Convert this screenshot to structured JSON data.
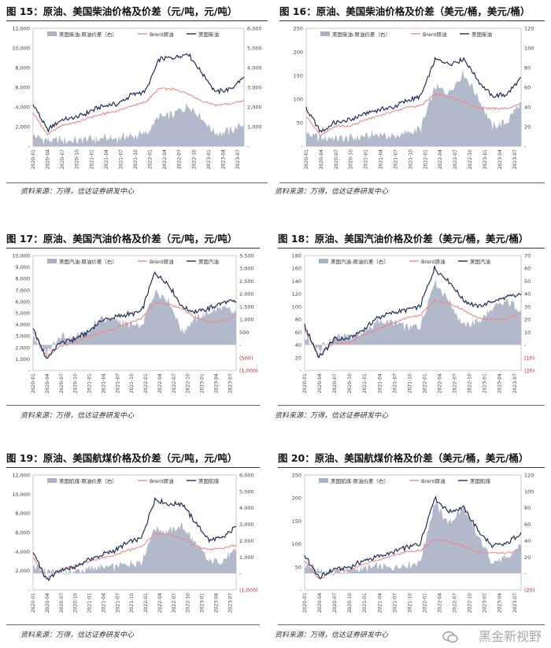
{
  "watermark": "黑金新视野",
  "colors": {
    "spread": "#a9b1c4",
    "brent": "#ef8a87",
    "product": "#1f2d5a",
    "neg": "#d81e1e"
  },
  "x_ticks": [
    "2020-01",
    "2020-04",
    "2020-07",
    "2020-10",
    "2021-01",
    "2021-04",
    "2021-07",
    "2021-10",
    "2022-01",
    "2022-04",
    "2022-07",
    "2022-10",
    "2023-01",
    "2023-04",
    "2023-07"
  ],
  "charts": [
    {
      "title": "图 15：原油、美国柴油价格及价差（元/吨，元/吨）",
      "source": "资料来源：万得，信达证券研发中心",
      "legend": {
        "spread": "美国柴油-原油价差（右）",
        "brent": "Brent原油",
        "product": "美国柴油"
      },
      "left_axis": {
        "min": 0,
        "max": 12000,
        "ticks": [
          0,
          2000,
          4000,
          6000,
          8000,
          10000,
          12000
        ],
        "labels": [
          "-",
          "2,000",
          "4,000",
          "6,000",
          "8,000",
          "10,000",
          "12,000"
        ]
      },
      "right_axis": {
        "min": 0,
        "max": 6000,
        "ticks": [
          0,
          1000,
          2000,
          3000,
          4000,
          5000,
          6000
        ],
        "labels": [
          "-",
          "1,000",
          "2,000",
          "3,000",
          "4,000",
          "5,000",
          "6,000"
        ],
        "neg_labels": []
      },
      "chart_data": {
        "type": "line",
        "dates": [
          "2020-01",
          "2020-04",
          "2020-07",
          "2020-10",
          "2021-01",
          "2021-04",
          "2021-07",
          "2021-10",
          "2022-01",
          "2022-04",
          "2022-07",
          "2022-10",
          "2023-01",
          "2023-04",
          "2023-07",
          "2023-09"
        ],
        "series": [
          {
            "name": "美国柴油",
            "axis": "left",
            "values": [
              4300,
              1700,
              2700,
              2900,
              3500,
              4100,
              4300,
              5200,
              5600,
              8900,
              9000,
              9500,
              7500,
              5500,
              5800,
              7000
            ]
          },
          {
            "name": "Brent原油",
            "axis": "left",
            "values": [
              3400,
              1200,
              2100,
              2400,
              2900,
              3300,
              3600,
              4100,
              4500,
              5900,
              5800,
              5400,
              4600,
              4200,
              4300,
              4700
            ]
          },
          {
            "name": "美国柴油-原油价差（右）",
            "axis": "right",
            "values": [
              500,
              300,
              300,
              300,
              350,
              400,
              400,
              550,
              600,
              1500,
              1600,
              2100,
              1450,
              650,
              750,
              1150
            ]
          }
        ]
      }
    },
    {
      "title": "图 16：原油、美国柴油价格及价差（美元/桶，美元/桶）",
      "source": "资料来源：万得，信达证券研发中心",
      "legend": {
        "spread": "美国柴油-原油价差（右）",
        "brent": "Brent原油",
        "product": "美国柴油"
      },
      "left_axis": {
        "min": 0,
        "max": 250,
        "ticks": [
          0,
          50,
          100,
          150,
          200,
          250
        ],
        "labels": [
          "-",
          "50",
          "100",
          "150",
          "200",
          "250"
        ]
      },
      "right_axis": {
        "min": 0,
        "max": 120,
        "ticks": [
          0,
          20,
          40,
          60,
          80,
          100,
          120
        ],
        "labels": [
          "-",
          "20",
          "40",
          "60",
          "80",
          "100",
          "120"
        ],
        "neg_labels": []
      },
      "chart_data": {
        "type": "line",
        "dates": [
          "2020-01",
          "2020-04",
          "2020-07",
          "2020-10",
          "2021-01",
          "2021-04",
          "2021-07",
          "2021-10",
          "2022-01",
          "2022-04",
          "2022-07",
          "2022-10",
          "2023-01",
          "2023-04",
          "2023-07",
          "2023-09"
        ],
        "series": [
          {
            "name": "美国柴油",
            "axis": "left",
            "values": [
              80,
              30,
              50,
              55,
              68,
              78,
              82,
              97,
              105,
              185,
              175,
              185,
              140,
              105,
              110,
              145
            ]
          },
          {
            "name": "Brent原油",
            "axis": "left",
            "values": [
              64,
              22,
              43,
              42,
              55,
              64,
              73,
              82,
              86,
              110,
              105,
              95,
              82,
              80,
              80,
              90
            ]
          },
          {
            "name": "美国柴油-原油价差（右）",
            "axis": "right",
            "values": [
              14,
              8,
              8,
              8,
              10,
              12,
              10,
              13,
              18,
              60,
              55,
              75,
              50,
              20,
              25,
              45
            ]
          }
        ]
      }
    },
    {
      "title": "图 17：原油、美国汽油价格及价差（元/吨，元/吨）",
      "source": "资料来源：万得，信达证券研发中心",
      "legend": {
        "spread": "美国汽油-原油价差（右）",
        "brent": "Brent原油",
        "product": "美国汽油"
      },
      "left_axis": {
        "min": 0,
        "max": 10000,
        "ticks": [
          0,
          1000,
          2000,
          3000,
          4000,
          5000,
          6000,
          7000,
          8000,
          9000,
          10000
        ],
        "labels": [
          "-",
          "1,000",
          "2,000",
          "3,000",
          "4,000",
          "5,000",
          "6,000",
          "7,000",
          "8,000",
          "9,000",
          "10,000"
        ]
      },
      "right_axis": {
        "min": -1000,
        "max": 3500,
        "ticks": [
          -1000,
          -500,
          0,
          500,
          1000,
          1500,
          2000,
          2500,
          3000,
          3500
        ],
        "labels": [
          "(1,000)",
          "(500)",
          "-",
          "500",
          "1,000",
          "1,500",
          "2,000",
          "2,500",
          "3,000",
          "3,500"
        ],
        "neg_labels": [
          "(1,000)",
          "(500)"
        ]
      },
      "chart_data": {
        "type": "line",
        "dates": [
          "2020-01",
          "2020-04",
          "2020-07",
          "2020-10",
          "2021-01",
          "2021-04",
          "2021-07",
          "2021-10",
          "2022-01",
          "2022-04",
          "2022-07",
          "2022-10",
          "2023-01",
          "2023-04",
          "2023-07",
          "2023-09"
        ],
        "series": [
          {
            "name": "美国汽油",
            "axis": "left",
            "values": [
              3600,
              1000,
              2400,
              2700,
              3300,
              4300,
              4600,
              4900,
              5100,
              8500,
              7500,
              5500,
              5100,
              5400,
              5900,
              6000
            ]
          },
          {
            "name": "Brent原油",
            "axis": "left",
            "values": [
              3400,
              1200,
              2100,
              2400,
              2900,
              3300,
              3600,
              4100,
              4500,
              5900,
              5800,
              5400,
              4600,
              4200,
              4300,
              4700
            ]
          },
          {
            "name": "美国汽油-原油价差（右）",
            "axis": "right",
            "values": [
              300,
              -300,
              300,
              300,
              500,
              1000,
              1000,
              800,
              700,
              2100,
              1800,
              500,
              1000,
              1300,
              1500,
              1200
            ]
          }
        ]
      }
    },
    {
      "title": "图 18：原油、美国汽油价格及价差（美元/桶，美元/桶）",
      "source": "资料来源：万得，信达证券研发中心",
      "legend": {
        "spread": "美国汽油-原油价差（右）",
        "brent": "Brent原油",
        "product": "美国汽油"
      },
      "left_axis": {
        "min": 0,
        "max": 180,
        "ticks": [
          0,
          20,
          40,
          60,
          80,
          100,
          120,
          140,
          160,
          180
        ],
        "labels": [
          "-",
          "20",
          "40",
          "60",
          "80",
          "100",
          "120",
          "140",
          "160",
          "180"
        ]
      },
      "right_axis": {
        "min": -20,
        "max": 70,
        "ticks": [
          -20,
          -10,
          0,
          10,
          20,
          30,
          40,
          50,
          60,
          70
        ],
        "labels": [
          "(20)",
          "(10)",
          "-",
          "10",
          "20",
          "30",
          "40",
          "50",
          "60",
          "70"
        ],
        "neg_labels": [
          "(20)",
          "(10)"
        ]
      },
      "chart_data": {
        "type": "line",
        "dates": [
          "2020-01",
          "2020-04",
          "2020-07",
          "2020-10",
          "2021-01",
          "2021-04",
          "2021-07",
          "2021-10",
          "2022-01",
          "2022-04",
          "2022-07",
          "2022-10",
          "2023-01",
          "2023-04",
          "2023-07",
          "2023-09"
        ],
        "series": [
          {
            "name": "美国汽油",
            "axis": "left",
            "values": [
              70,
              20,
              48,
              50,
              62,
              82,
              90,
              95,
              100,
              160,
              140,
              110,
              100,
              108,
              115,
              118
            ]
          },
          {
            "name": "Brent原油",
            "axis": "left",
            "values": [
              64,
              22,
              43,
              42,
              55,
              64,
              73,
              82,
              86,
              110,
              105,
              95,
              82,
              80,
              80,
              90
            ]
          },
          {
            "name": "美国汽油-原油价差（右）",
            "axis": "right",
            "values": [
              6,
              -5,
              6,
              7,
              9,
              18,
              18,
              14,
              14,
              50,
              35,
              15,
              18,
              28,
              34,
              28
            ]
          }
        ]
      }
    },
    {
      "title": "图 19：原油、美国航煤价格及价差（元/吨，元/吨）",
      "source": "资料来源：万得，信达证券研发中心",
      "legend": {
        "spread": "美国航煤-原油价差（右）",
        "brent": "Brent原油",
        "product": "美国航煤"
      },
      "left_axis": {
        "min": 0,
        "max": 12000,
        "ticks": [
          0,
          2000,
          4000,
          6000,
          8000,
          10000,
          12000
        ],
        "labels": [
          "-",
          "2,000",
          "4,000",
          "6,000",
          "8,000",
          "10,000",
          "12,000"
        ]
      },
      "right_axis": {
        "min": -1000,
        "max": 6000,
        "ticks": [
          -1000,
          0,
          1000,
          2000,
          3000,
          4000,
          5000,
          6000
        ],
        "labels": [
          "(1,000)",
          "-",
          "1,000",
          "2,000",
          "3,000",
          "4,000",
          "5,000",
          "6,000"
        ],
        "neg_labels": [
          "(1,000)"
        ]
      },
      "chart_data": {
        "type": "line",
        "dates": [
          "2020-01",
          "2020-04",
          "2020-07",
          "2020-10",
          "2021-01",
          "2021-04",
          "2021-07",
          "2021-10",
          "2022-01",
          "2022-04",
          "2022-07",
          "2022-10",
          "2023-01",
          "2023-04",
          "2023-07",
          "2023-09"
        ],
        "series": [
          {
            "name": "美国航煤",
            "axis": "left",
            "values": [
              4100,
              1000,
              2100,
              2300,
              3100,
              3600,
              4100,
              4900,
              5400,
              9500,
              8900,
              9000,
              7000,
              5200,
              5400,
              6600
            ]
          },
          {
            "name": "Brent原油",
            "axis": "left",
            "values": [
              3400,
              1200,
              2100,
              2400,
              2900,
              3300,
              3600,
              4100,
              4500,
              5900,
              5800,
              5400,
              4600,
              4200,
              4300,
              4700
            ]
          },
          {
            "name": "美国航煤-原油价差（右）",
            "axis": "right",
            "values": [
              400,
              100,
              100,
              100,
              250,
              350,
              400,
              600,
              700,
              2800,
              2500,
              2900,
              1800,
              700,
              800,
              1400
            ]
          }
        ]
      }
    },
    {
      "title": "图 20：原油、美国航煤价格及价差（美元/桶，美元/桶）",
      "source": "资料来源：万得，信达证券研发中心",
      "legend": {
        "spread": "美国航煤-原油价差（右）",
        "brent": "Brent原油",
        "product": "美国航煤"
      },
      "left_axis": {
        "min": 0,
        "max": 250,
        "ticks": [
          0,
          50,
          100,
          150,
          200,
          250
        ],
        "labels": [
          "-",
          "50",
          "100",
          "150",
          "200",
          "250"
        ]
      },
      "right_axis": {
        "min": -20,
        "max": 120,
        "ticks": [
          -20,
          0,
          20,
          40,
          60,
          80,
          100,
          120
        ],
        "labels": [
          "(20)",
          "-",
          "20",
          "40",
          "60",
          "80",
          "100",
          "120"
        ],
        "neg_labels": [
          "(20)"
        ]
      },
      "chart_data": {
        "type": "line",
        "dates": [
          "2020-01",
          "2020-04",
          "2020-07",
          "2020-10",
          "2021-01",
          "2021-04",
          "2021-07",
          "2021-10",
          "2022-01",
          "2022-04",
          "2022-07",
          "2022-10",
          "2023-01",
          "2023-04",
          "2023-07",
          "2023-09"
        ],
        "series": [
          {
            "name": "美国航煤",
            "axis": "left",
            "values": [
              75,
              25,
              45,
              48,
              62,
              72,
              80,
              92,
              100,
              200,
              170,
              180,
              130,
              95,
              100,
              125
            ]
          },
          {
            "name": "Brent原油",
            "axis": "left",
            "values": [
              64,
              22,
              43,
              42,
              55,
              64,
              73,
              82,
              86,
              110,
              105,
              95,
              82,
              80,
              80,
              90
            ]
          },
          {
            "name": "美国航煤-原油价差（右）",
            "axis": "right",
            "values": [
              10,
              3,
              2,
              3,
              6,
              8,
              7,
              10,
              14,
              85,
              60,
              80,
              45,
              15,
              18,
              35
            ]
          }
        ]
      }
    }
  ]
}
